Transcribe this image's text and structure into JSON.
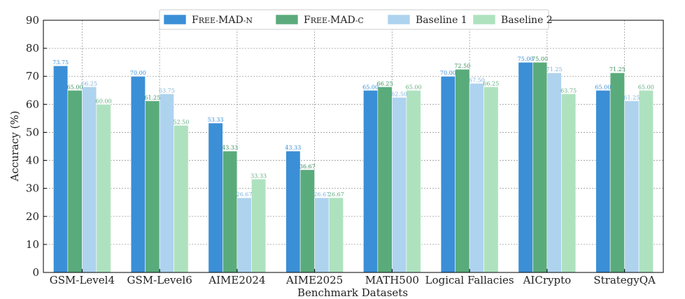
{
  "chart_data": {
    "type": "bar",
    "title": "",
    "xlabel": "Benchmark Datasets",
    "ylabel": "Accuracy (%)",
    "ylim": [
      0,
      90
    ],
    "yticks": [
      0,
      10,
      20,
      30,
      40,
      50,
      60,
      70,
      80,
      90
    ],
    "grid": true,
    "legend_position": "top",
    "categories": [
      "GSM-Level4",
      "GSM-Level6",
      "AIME2024",
      "AIME2025",
      "MATH500",
      "Logical Fallacies",
      "AICrypto",
      "StrategyQA"
    ],
    "series": [
      {
        "name": "Free-MAD-n",
        "color": "#3b8fd6",
        "label_color": "#3b8fd6",
        "values": [
          73.75,
          70.0,
          53.33,
          43.33,
          65.0,
          70.0,
          75.0,
          65.0
        ],
        "labels": [
          "73.75",
          "70.00",
          "53.33",
          "43.33",
          "65.00",
          "70.00",
          "75.00",
          "65.00"
        ]
      },
      {
        "name": "Free-MAD-c",
        "color": "#5aab7b",
        "label_color": "#3c8f5e",
        "values": [
          65.0,
          61.25,
          43.33,
          36.67,
          66.25,
          72.5,
          75.0,
          71.25
        ],
        "labels": [
          "65.00",
          "61.25",
          "43.33",
          "36.67",
          "66.25",
          "72.50",
          "75.00",
          "71.25"
        ]
      },
      {
        "name": "Baseline 1",
        "color": "#aed3ee",
        "label_color": "#7fb2d8",
        "values": [
          66.25,
          63.75,
          26.67,
          26.67,
          62.5,
          67.5,
          71.25,
          61.25
        ],
        "labels": [
          "66.25",
          "63.75",
          "26.67",
          "26.67",
          "62.50",
          "67.50",
          "71.25",
          "61.25"
        ]
      },
      {
        "name": "Baseline 2",
        "color": "#aee2bf",
        "label_color": "#5fae7d",
        "values": [
          60.0,
          52.5,
          33.33,
          26.67,
          65.0,
          66.25,
          63.75,
          65.0
        ],
        "labels": [
          "60.00",
          "52.50",
          "33.33",
          "26.67",
          "65.00",
          "66.25",
          "63.75",
          "65.00"
        ]
      }
    ]
  }
}
